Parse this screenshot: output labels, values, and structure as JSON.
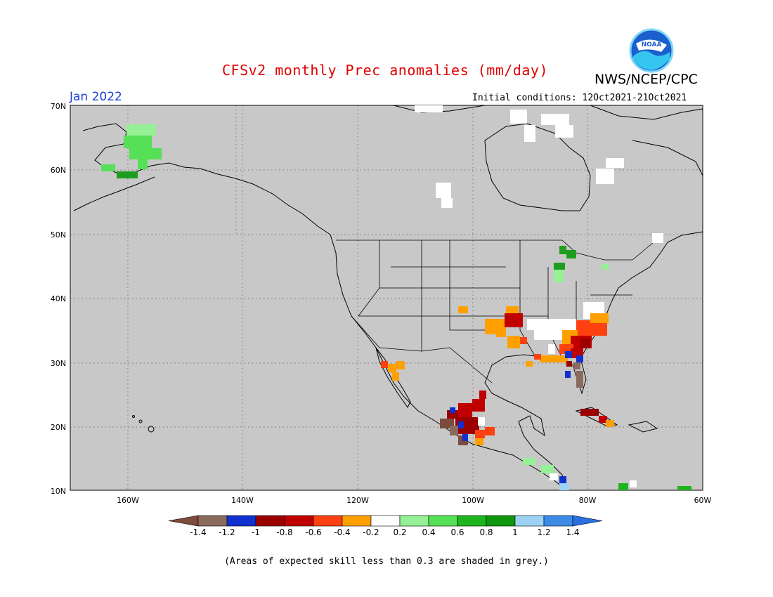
{
  "header": {
    "title": "CFSv2 monthly Prec anomalies (mm/day)",
    "agency": "NWS/NCEP/CPC",
    "logo_text": "NOAA",
    "month": "Jan 2022",
    "initial_conditions": "Initial conditions: 12Oct2021-21Oct2021"
  },
  "map": {
    "region": "North America",
    "background_color": "#c8c8c8",
    "lat_range": [
      10,
      70
    ],
    "lon_range": [
      -170,
      -60
    ],
    "lat_labels": [
      "70N",
      "60N",
      "50N",
      "40N",
      "30N",
      "20N",
      "10N"
    ],
    "lon_labels": [
      "160W",
      "140W",
      "120W",
      "100W",
      "80W",
      "60W"
    ],
    "anomaly_regions": [
      {
        "area": "Southwest Alaska",
        "bin": "0.2 to 0.6",
        "color": "#55e055"
      },
      {
        "area": "Arkansas / Mississippi",
        "bin": "-0.6 to -0.2",
        "color": "#ffa000"
      },
      {
        "area": "Carolinas / Georgia",
        "bin": "-1 to -0.4",
        "color": "#c00000"
      },
      {
        "area": "Central Mexico",
        "bin": "-1.4 to -0.6",
        "color": "#c00000"
      },
      {
        "area": "Cuba",
        "bin": "-1 to -0.6",
        "color": "#a00000"
      },
      {
        "area": "Baja California",
        "bin": "-0.6 to -0.2",
        "color": "#ffa000"
      },
      {
        "area": "Great Lakes",
        "bin": "0.2 to 0.8",
        "color": "#1e9e1e"
      },
      {
        "area": "Hudson Bay / Labrador",
        "bin": "-0.2 to 0.2",
        "color": "#ffffff"
      },
      {
        "area": "Central America",
        "bin": "0.2 to 1.2",
        "color": "#55e055"
      }
    ]
  },
  "colorbar": {
    "labels": [
      "-1.4",
      "-1.2",
      "-1",
      "-0.8",
      "-0.6",
      "-0.4",
      "-0.2",
      "0.2",
      "0.4",
      "0.6",
      "0.8",
      "1",
      "1.2",
      "1.4"
    ],
    "colors": [
      "#7d4b3c",
      "#8b6a5e",
      "#1030d0",
      "#9a0000",
      "#c00000",
      "#ff4010",
      "#ffa000",
      "#ffffff",
      "#96f096",
      "#55e055",
      "#1eb41e",
      "#0f960f",
      "#9ed2f5",
      "#3c8ce6",
      "#2a6fe0"
    ]
  },
  "footnote": "(Areas of expected skill less than 0.3 are shaded in grey.)"
}
